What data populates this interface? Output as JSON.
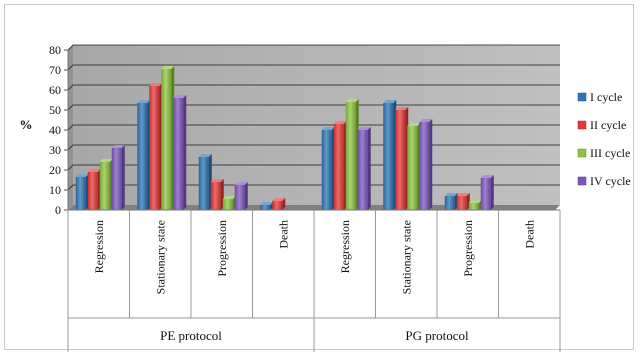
{
  "chart_data": {
    "type": "bar",
    "title": "",
    "xlabel": "",
    "ylabel": "%",
    "ylim": [
      0,
      80
    ],
    "yticks": [
      0,
      10,
      20,
      30,
      40,
      50,
      60,
      70,
      80
    ],
    "grid": true,
    "legend_position": "right",
    "plot_background": "#b7b7b7",
    "groups": [
      {
        "name": "PE protocol",
        "categories": [
          "Regression",
          "Stationary state",
          "Progression",
          "Death"
        ]
      },
      {
        "name": "PG protocol",
        "categories": [
          "Regression",
          "Stationary state",
          "Progression",
          "Death"
        ]
      }
    ],
    "categories": [
      "Regression",
      "Stationary state",
      "Progression",
      "Death",
      "Regression",
      "Stationary state",
      "Progression",
      "Death"
    ],
    "series": [
      {
        "name": "I cycle",
        "color": "#2e75b6",
        "values": [
          16.5,
          53.5,
          26.5,
          2.5,
          40,
          53.5,
          7,
          0
        ]
      },
      {
        "name": "II cycle",
        "color": "#e53935",
        "values": [
          19,
          62,
          14,
          4.5,
          43,
          50,
          7,
          0
        ]
      },
      {
        "name": "III cycle",
        "color": "#8bc53f",
        "values": [
          24,
          70.5,
          5.5,
          0,
          54,
          42,
          3.5,
          0
        ]
      },
      {
        "name": "IV cycle",
        "color": "#7e57c2",
        "values": [
          31,
          56,
          12.5,
          0,
          40,
          44,
          16,
          0
        ]
      }
    ]
  }
}
